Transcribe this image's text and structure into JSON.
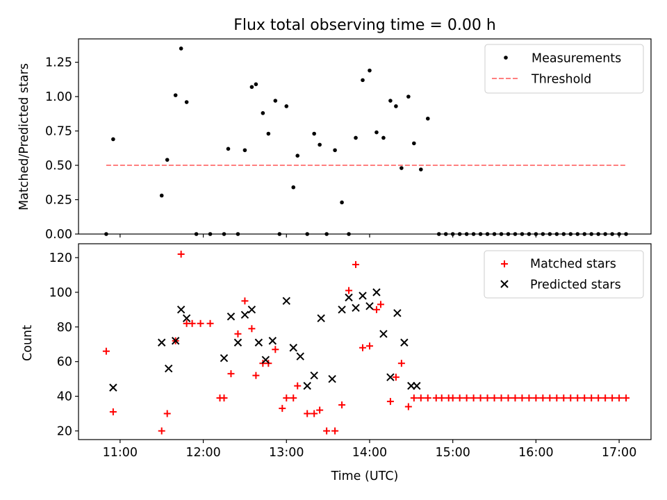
{
  "chart_data": [
    {
      "type": "scatter",
      "title": "Flux total observing time = 0.00 h",
      "xlabel": "",
      "ylabel": "Matched/Predicted stars",
      "xlim": [
        "10:30",
        "17:23"
      ],
      "ylim": [
        0,
        1.42
      ],
      "x_ticks": [
        "11:00",
        "12:00",
        "13:00",
        "14:00",
        "15:00",
        "16:00",
        "17:00"
      ],
      "x_ticklabels_visible": false,
      "y_ticks": [
        0,
        0.25,
        0.5,
        0.75,
        1.0,
        1.25
      ],
      "y_ticklabels": [
        "0.00",
        "0.25",
        "0.50",
        "0.75",
        "1.00",
        "1.25"
      ],
      "grid": false,
      "legend_position": "top-right",
      "series": [
        {
          "name": "Measurements",
          "kind": "points",
          "color": "#000000",
          "x": [
            "10:50",
            "10:55",
            "11:30",
            "11:34",
            "11:40",
            "11:44",
            "11:48",
            "11:55",
            "12:05",
            "12:15",
            "12:18",
            "12:25",
            "12:30",
            "12:35",
            "12:38",
            "12:43",
            "12:47",
            "12:52",
            "12:55",
            "13:00",
            "13:05",
            "13:08",
            "13:15",
            "13:20",
            "13:24",
            "13:29",
            "13:35",
            "13:40",
            "13:45",
            "13:50",
            "13:55",
            "14:00",
            "14:05",
            "14:10",
            "14:15",
            "14:19",
            "14:23",
            "14:28",
            "14:32",
            "14:37",
            "14:42",
            "14:50",
            "14:55",
            "15:00",
            "15:05",
            "15:10",
            "15:15",
            "15:20",
            "15:25",
            "15:30",
            "15:35",
            "15:40",
            "15:45",
            "15:50",
            "15:55",
            "16:00",
            "16:05",
            "16:10",
            "16:15",
            "16:20",
            "16:25",
            "16:30",
            "16:35",
            "16:40",
            "16:45",
            "16:50",
            "16:55",
            "17:00",
            "17:05"
          ],
          "y": [
            0,
            0.69,
            0.28,
            0.54,
            1.01,
            1.35,
            0.96,
            0,
            0,
            0,
            0.62,
            0,
            0.61,
            1.07,
            1.09,
            0.88,
            0.73,
            0.97,
            0,
            0.93,
            0.34,
            0.57,
            0,
            0.73,
            0.65,
            0,
            0.61,
            0.23,
            0,
            0.7,
            1.12,
            1.19,
            0.74,
            0.7,
            0.97,
            0.93,
            0.48,
            1.0,
            0.66,
            0.47,
            0.84,
            0,
            0,
            0,
            0,
            0,
            0,
            0,
            0,
            0,
            0,
            0,
            0,
            0,
            0,
            0,
            0,
            0,
            0,
            0,
            0,
            0,
            0,
            0,
            0,
            0,
            0,
            0,
            0
          ]
        },
        {
          "name": "Threshold",
          "kind": "dashed-line",
          "color": "#ff7f7f",
          "x": [
            "10:50",
            "17:05"
          ],
          "y": [
            0.5,
            0.5
          ]
        }
      ]
    },
    {
      "type": "scatter",
      "title": "",
      "xlabel": "Time (UTC)",
      "ylabel": "Count",
      "xlim": [
        "10:30",
        "17:23"
      ],
      "ylim": [
        15,
        128
      ],
      "x_ticks": [
        "11:00",
        "12:00",
        "13:00",
        "14:00",
        "15:00",
        "16:00",
        "17:00"
      ],
      "y_ticks": [
        20,
        40,
        60,
        80,
        100,
        120
      ],
      "grid": false,
      "legend_position": "top-right",
      "series": [
        {
          "name": "Matched stars",
          "kind": "plus",
          "color": "#ff0000",
          "x": [
            "10:50",
            "10:55",
            "11:30",
            "11:34",
            "11:40",
            "11:44",
            "11:48",
            "11:52",
            "11:58",
            "12:05",
            "12:12",
            "12:15",
            "12:20",
            "12:25",
            "12:30",
            "12:35",
            "12:38",
            "12:43",
            "12:47",
            "12:52",
            "12:57",
            "13:00",
            "13:05",
            "13:08",
            "13:15",
            "13:20",
            "13:24",
            "13:29",
            "13:35",
            "13:40",
            "13:45",
            "13:50",
            "13:55",
            "14:00",
            "14:05",
            "14:08",
            "14:15",
            "14:19",
            "14:23",
            "14:28",
            "14:32",
            "14:37",
            "14:42",
            "14:48",
            "14:52",
            "14:57",
            "15:00",
            "15:05",
            "15:10",
            "15:15",
            "15:20",
            "15:25",
            "15:30",
            "15:35",
            "15:40",
            "15:45",
            "15:50",
            "15:55",
            "16:00",
            "16:05",
            "16:10",
            "16:15",
            "16:20",
            "16:25",
            "16:30",
            "16:35",
            "16:40",
            "16:45",
            "16:50",
            "16:55",
            "17:00",
            "17:05"
          ],
          "y": [
            66,
            31,
            20,
            30,
            72,
            122,
            82,
            82,
            82,
            82,
            39,
            39,
            53,
            76,
            95,
            79,
            52,
            59,
            59,
            67,
            33,
            39,
            39,
            46,
            30,
            30,
            32,
            20,
            20,
            35,
            101,
            116,
            68,
            69,
            90,
            93,
            37,
            51,
            59,
            34,
            39,
            39,
            39,
            39,
            39,
            39,
            39,
            39,
            39,
            39,
            39,
            39,
            39,
            39,
            39,
            39,
            39,
            39,
            39,
            39,
            39,
            39,
            39,
            39,
            39,
            39,
            39,
            39,
            39,
            39,
            39,
            39
          ]
        },
        {
          "name": "Predicted stars",
          "kind": "x",
          "color": "#000000",
          "x": [
            "10:55",
            "11:30",
            "11:35",
            "11:40",
            "11:44",
            "11:48",
            "12:15",
            "12:20",
            "12:25",
            "12:30",
            "12:35",
            "12:40",
            "12:45",
            "12:50",
            "13:00",
            "13:05",
            "13:10",
            "13:15",
            "13:20",
            "13:25",
            "13:33",
            "13:40",
            "13:45",
            "13:50",
            "13:55",
            "14:00",
            "14:05",
            "14:10",
            "14:15",
            "14:20",
            "14:25",
            "14:30",
            "14:34"
          ],
          "y": [
            45,
            71,
            56,
            72,
            90,
            85,
            62,
            86,
            71,
            87,
            90,
            71,
            61,
            72,
            95,
            68,
            63,
            46,
            52,
            85,
            50,
            90,
            97,
            91,
            98,
            92,
            100,
            76,
            51,
            88,
            71,
            46,
            46
          ]
        }
      ]
    }
  ]
}
